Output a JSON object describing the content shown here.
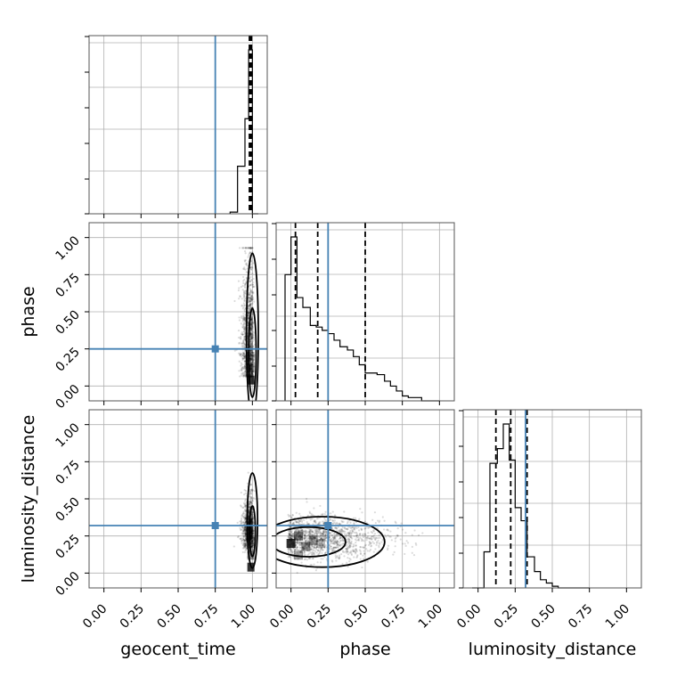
{
  "chart_data": {
    "type": "corner",
    "parameters": [
      "geocent_time",
      "phase",
      "luminosity_distance"
    ],
    "axis_range": [
      -0.1,
      1.1
    ],
    "tick_labels": [
      "0.00",
      "0.25",
      "0.50",
      "0.75",
      "1.00"
    ],
    "tick_values": [
      0,
      0.25,
      0.5,
      0.75,
      1.0
    ],
    "truth_color": "#4682b4",
    "truths": {
      "geocent_time": 0.75,
      "phase": 0.25,
      "luminosity_distance": 0.32
    },
    "grid": true,
    "histograms": {
      "geocent_time": {
        "bins": [
          0.85,
          0.9,
          0.95,
          0.975,
          1.0,
          1.04
        ],
        "heights": [
          0.01,
          0.29,
          0.58,
          1.0,
          0.0
        ],
        "quantiles": [
          0.98,
          0.986,
          0.994
        ]
      },
      "phase": {
        "bins": [
          -0.04,
          0.0,
          0.04,
          0.08,
          0.13,
          0.17,
          0.21,
          0.25,
          0.29,
          0.33,
          0.38,
          0.42,
          0.46,
          0.5,
          0.54,
          0.58,
          0.63,
          0.67,
          0.71,
          0.75,
          0.79,
          0.83,
          0.88,
          0.92,
          0.96,
          1.0
        ],
        "heights": [
          0.77,
          1.0,
          0.63,
          0.57,
          0.46,
          0.45,
          0.43,
          0.41,
          0.37,
          0.33,
          0.31,
          0.27,
          0.22,
          0.17,
          0.17,
          0.16,
          0.12,
          0.09,
          0.06,
          0.03,
          0.02,
          0.02,
          0.0,
          0.0,
          0.0
        ],
        "quantiles": [
          0.03,
          0.18,
          0.5
        ]
      },
      "luminosity_distance": {
        "bins": [
          -0.04,
          0.0,
          0.04,
          0.08,
          0.13,
          0.17,
          0.21,
          0.25,
          0.29,
          0.33,
          0.38,
          0.42,
          0.46,
          0.5,
          0.54,
          0.58,
          0.63,
          0.67,
          0.71,
          0.75
        ],
        "heights": [
          0.0,
          0.0,
          0.22,
          0.76,
          0.85,
          1.0,
          0.78,
          0.49,
          0.41,
          0.19,
          0.1,
          0.05,
          0.03,
          0.01,
          0.0,
          0.0,
          0.0,
          0.0,
          0.0
        ],
        "quantiles": [
          0.12,
          0.22,
          0.33
        ]
      }
    },
    "pairs": [
      {
        "x": "geocent_time",
        "y": "phase",
        "center": [
          1.0,
          0.08
        ],
        "spread": [
          0.035,
          0.35
        ],
        "contours": [
          [
            0.04,
            0.55
          ],
          [
            0.025,
            0.3
          ]
        ]
      },
      {
        "x": "geocent_time",
        "y": "luminosity_distance",
        "center": [
          1.0,
          0.2
        ],
        "spread": [
          0.03,
          0.12
        ],
        "contours": [
          [
            0.035,
            0.32
          ],
          [
            0.02,
            0.17
          ]
        ]
      },
      {
        "x": "phase",
        "y": "luminosity_distance",
        "center": [
          0.2,
          0.2
        ],
        "spread": [
          0.22,
          0.07
        ],
        "contours": [
          [
            0.42,
            0.17
          ],
          [
            0.25,
            0.1
          ]
        ]
      }
    ]
  }
}
